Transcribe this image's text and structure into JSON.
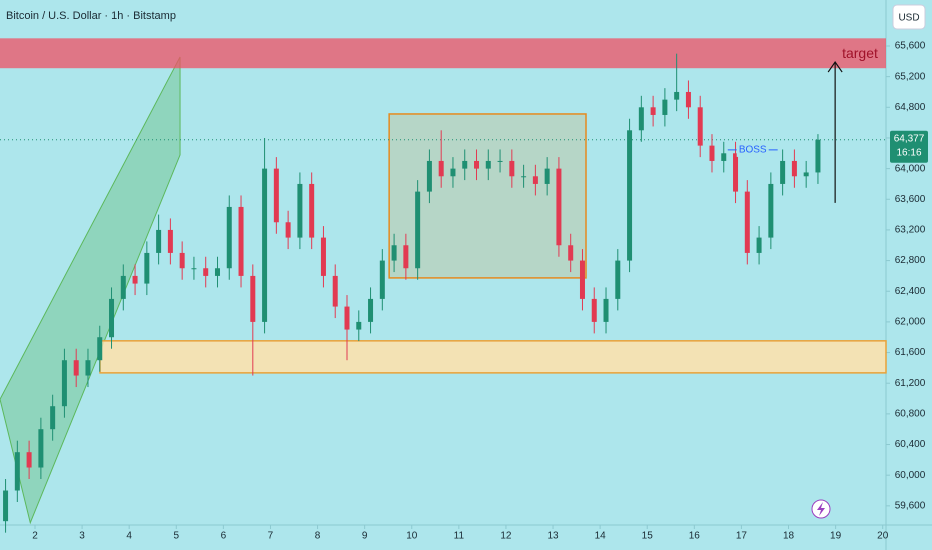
{
  "chart_data": {
    "type": "candlestick",
    "title": "Bitcoin / U.S. Dollar · 1h · Bitstamp",
    "currency": "USD",
    "up_color": "#1f8f72",
    "down_color": "#e23a52",
    "x": [
      1.375,
      1.625,
      1.875,
      2.125,
      2.375,
      2.625,
      2.875,
      3.125,
      3.375,
      3.625,
      3.875,
      4.125,
      4.375,
      4.625,
      4.875,
      5.125,
      5.375,
      5.625,
      5.875,
      6.125,
      6.375,
      6.625,
      6.875,
      7.125,
      7.375,
      7.625,
      7.875,
      8.125,
      8.375,
      8.625,
      8.875,
      9.125,
      9.375,
      9.625,
      9.875,
      10.125,
      10.375,
      10.625,
      10.875,
      11.125,
      11.375,
      11.625,
      11.875,
      12.125,
      12.375,
      12.625,
      12.875,
      13.125,
      13.375,
      13.625,
      13.875,
      14.125,
      14.375,
      14.625,
      14.875,
      15.125,
      15.375,
      15.625,
      15.875,
      16.125,
      16.375,
      16.625,
      16.875,
      17.125,
      17.375,
      17.625,
      17.875,
      18.125,
      18.375,
      18.625
    ],
    "open": [
      59400,
      59800,
      60300,
      60100,
      60600,
      60900,
      61500,
      61300,
      61500,
      61800,
      62300,
      62600,
      62500,
      62900,
      63200,
      62900,
      62700,
      62700,
      62600,
      62700,
      63500,
      62600,
      62000,
      64000,
      63300,
      63100,
      63800,
      63100,
      62600,
      62200,
      61900,
      62000,
      62300,
      62800,
      63000,
      62700,
      63700,
      64100,
      63900,
      64000,
      64100,
      64000,
      64100,
      64100,
      63900,
      63900,
      63800,
      64000,
      63000,
      62800,
      62300,
      62000,
      62300,
      62800,
      64500,
      64800,
      64700,
      64900,
      65000,
      64800,
      64300,
      64100,
      64200,
      63700,
      62900,
      63100,
      63800,
      64100,
      63900,
      63950
    ],
    "high": [
      59950,
      60450,
      60450,
      60750,
      61050,
      61650,
      61650,
      61650,
      61950,
      62450,
      62750,
      62750,
      63050,
      63400,
      63350,
      63050,
      62850,
      62850,
      62850,
      63650,
      63650,
      62750,
      64400,
      64150,
      63450,
      63950,
      63950,
      63250,
      62750,
      62350,
      62150,
      62450,
      62950,
      63150,
      63150,
      63850,
      64250,
      64500,
      64150,
      64250,
      64250,
      64250,
      64250,
      64250,
      64050,
      64050,
      64150,
      64150,
      63150,
      62950,
      62450,
      62450,
      62950,
      64650,
      64950,
      64950,
      65050,
      65500,
      65150,
      64950,
      64450,
      64350,
      64350,
      63850,
      63250,
      63950,
      64250,
      64250,
      64100,
      64450
    ],
    "low": [
      59250,
      59650,
      59950,
      59950,
      60450,
      60750,
      61150,
      61150,
      61350,
      61650,
      62150,
      62350,
      62350,
      62750,
      62750,
      62550,
      62550,
      62450,
      62450,
      62550,
      62450,
      61300,
      61850,
      63150,
      62950,
      62950,
      62950,
      62450,
      62050,
      61500,
      61750,
      61850,
      62150,
      62650,
      62550,
      62550,
      63550,
      63750,
      63750,
      63850,
      63850,
      63850,
      63950,
      63750,
      63750,
      63650,
      63650,
      62850,
      62650,
      62150,
      61850,
      61850,
      62150,
      62650,
      64350,
      64550,
      64550,
      64750,
      64650,
      64150,
      63950,
      63950,
      63550,
      62750,
      62750,
      62950,
      63650,
      63750,
      63750,
      63800
    ],
    "close": [
      59800,
      60300,
      60100,
      60600,
      60900,
      61500,
      61300,
      61500,
      61800,
      62300,
      62600,
      62500,
      62900,
      63200,
      62900,
      62700,
      62700,
      62600,
      62700,
      63500,
      62600,
      62000,
      64000,
      63300,
      63100,
      63800,
      63100,
      62600,
      62200,
      61900,
      62000,
      62300,
      62800,
      63000,
      62700,
      63700,
      64100,
      63900,
      64000,
      64100,
      64000,
      64100,
      64100,
      63900,
      63900,
      63800,
      64000,
      63000,
      62800,
      62300,
      62000,
      62300,
      62800,
      64500,
      64800,
      64700,
      64900,
      65000,
      64800,
      64300,
      64100,
      64200,
      63700,
      62900,
      63100,
      63800,
      64100,
      63900,
      63950,
      64377
    ],
    "xlim": [
      1.257,
      20.07
    ],
    "ylim": [
      59350,
      66200
    ],
    "xticks": [
      2,
      3,
      4,
      5,
      6,
      7,
      8,
      9,
      10,
      11,
      12,
      13,
      14,
      15,
      16,
      17,
      18,
      19,
      20
    ],
    "yticks": [
      {
        "value": 59600,
        "label": "59,600"
      },
      {
        "value": 60000,
        "label": "60,000"
      },
      {
        "value": 60400,
        "label": "60,400"
      },
      {
        "value": 60800,
        "label": "60,800"
      },
      {
        "value": 61200,
        "label": "61,200"
      },
      {
        "value": 61600,
        "label": "61,600"
      },
      {
        "value": 62000,
        "label": "62,000"
      },
      {
        "value": 62400,
        "label": "62,400"
      },
      {
        "value": 62800,
        "label": "62,800"
      },
      {
        "value": 63200,
        "label": "63,200"
      },
      {
        "value": 63600,
        "label": "63,600"
      },
      {
        "value": 64000,
        "label": "64,000"
      },
      {
        "value": 64400,
        "label": "64,400"
      },
      {
        "value": 64800,
        "label": "64,800"
      },
      {
        "value": 65200,
        "label": "65,200"
      },
      {
        "value": 65600,
        "label": "65,600"
      }
    ],
    "price_tag": {
      "value": 64377,
      "label": "64,377",
      "countdown": "16:16"
    },
    "target_zone": {
      "x": [
        1.257,
        20.07
      ],
      "y": [
        65310,
        65700
      ],
      "label": "target"
    },
    "support_zone": {
      "x": [
        3.38,
        20.07
      ],
      "y": [
        61335,
        61753
      ]
    },
    "range_box": {
      "x": [
        9.52,
        13.7
      ],
      "y": [
        62574,
        64713
      ]
    },
    "channel": {
      "x": [
        1.257,
        5.08,
        5.08,
        1.9
      ],
      "y": [
        60990,
        65457,
        64179,
        59380
      ]
    },
    "boss": {
      "x": [
        16.71,
        17.77
      ],
      "y": 64244,
      "label": "BOSS"
    },
    "arrow": {
      "x": 18.99,
      "y": [
        63553,
        65390
      ]
    }
  }
}
